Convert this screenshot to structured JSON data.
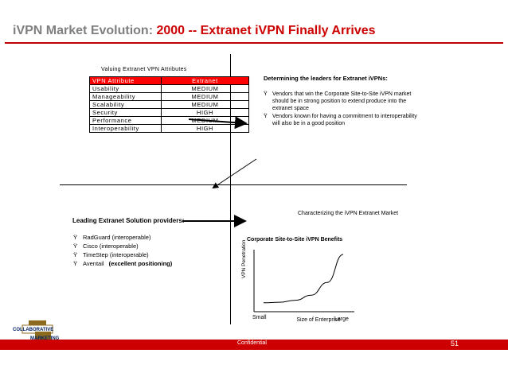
{
  "header": {
    "title_prefix": "iVPN Market Evolution:",
    "title_highlight": "2000 -- Extranet iVPN Finally Arrives"
  },
  "attributes_table": {
    "caption": "Valuing Extranet VPN Attributes",
    "columns": [
      "VPN Attribute",
      "Extranet"
    ],
    "rows": [
      [
        "Usability",
        "MEDIUM"
      ],
      [
        "Manageability",
        "MEDIUM"
      ],
      [
        "Scalability",
        "MEDIUM"
      ],
      [
        "Security",
        "HIGH"
      ],
      [
        "Performance",
        "MEDIUM"
      ],
      [
        "Interoperability",
        "HIGH"
      ]
    ]
  },
  "leaders": {
    "title": "Determining the leaders for Extranet iVPNs:",
    "bullet_mark": "Ÿ",
    "bullets": [
      [
        "Vendors that win the Corporate Site-to-Site iVPN market",
        "should be in strong position to extend produce into the",
        "extranet space"
      ],
      [
        "Vendors known for having a commitment to interoperability",
        "will also be in a good position"
      ]
    ]
  },
  "market": {
    "characterizing_label": "Characterizing the iVPN Extranet Market"
  },
  "providers": {
    "title": "Leading Extranet Solution providers:",
    "bullet_mark": "Ÿ",
    "items": [
      {
        "name": "RadGuard (interoperable)",
        "note": ""
      },
      {
        "name": "Cisco (interoperable)",
        "note": ""
      },
      {
        "name": "TimeStep (interoperable)",
        "note": ""
      },
      {
        "name": "Aventail",
        "note": "(excellent positioning)"
      }
    ]
  },
  "chart_data": {
    "type": "line",
    "title": "Corporate Site-to-Site iVPN Benefits",
    "ylabel": "VPN Penetration",
    "x_labels": [
      "Small",
      "Size of Enterprise",
      "Large"
    ],
    "series": [
      {
        "values": [
          0.05,
          0.06,
          0.1,
          0.2,
          0.45,
          1.0
        ]
      }
    ]
  },
  "footer": {
    "confidential": "Confidential",
    "page_number": "51"
  },
  "logo": {
    "line1": "COLLABORATIVE",
    "line2": "MARKETING"
  },
  "colors": {
    "title_gray": "#7f7f7f",
    "accent_red": "#cc0000",
    "table_head_red": "#ff0000"
  }
}
